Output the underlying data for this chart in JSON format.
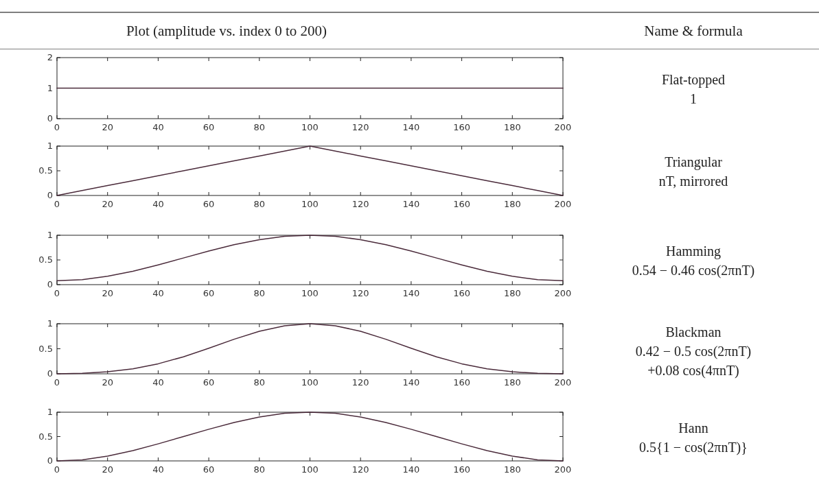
{
  "chart_data": [
    {
      "type": "line",
      "title": "Plot (amplitude vs. index 0 to 200)",
      "annotations": [
        "Name & formula",
        "Flat-topped",
        "1"
      ],
      "x": [
        0,
        10,
        20,
        30,
        40,
        50,
        60,
        70,
        80,
        90,
        100,
        110,
        120,
        130,
        140,
        150,
        160,
        170,
        180,
        190,
        200
      ],
      "values": [
        1,
        1,
        1,
        1,
        1,
        1,
        1,
        1,
        1,
        1,
        1,
        1,
        1,
        1,
        1,
        1,
        1,
        1,
        1,
        1,
        1
      ],
      "color": "#4a2a3a",
      "xlim": [
        0,
        200
      ],
      "xticks": [
        0,
        20,
        40,
        60,
        80,
        100,
        120,
        140,
        160,
        180,
        200
      ],
      "ylim": [
        0,
        2
      ],
      "yticks": [
        0,
        1,
        2
      ]
    },
    {
      "type": "line",
      "annotations": [
        "Triangular",
        "nT, mirrored"
      ],
      "x": [
        0,
        10,
        20,
        30,
        40,
        50,
        60,
        70,
        80,
        90,
        100,
        110,
        120,
        130,
        140,
        150,
        160,
        170,
        180,
        190,
        200
      ],
      "values": [
        0,
        0.1,
        0.2,
        0.3,
        0.4,
        0.5,
        0.6,
        0.7,
        0.8,
        0.9,
        1,
        0.9,
        0.8,
        0.7,
        0.6,
        0.5,
        0.4,
        0.3,
        0.2,
        0.1,
        0
      ],
      "color": "#4a2a3a",
      "xlim": [
        0,
        200
      ],
      "xticks": [
        0,
        20,
        40,
        60,
        80,
        100,
        120,
        140,
        160,
        180,
        200
      ],
      "ylim": [
        0,
        1
      ],
      "yticks": [
        0,
        0.5,
        1
      ]
    },
    {
      "type": "line",
      "annotations": [
        "Hamming",
        "0.54 − 0.46 cos(2πnT)"
      ],
      "x": [
        0,
        10,
        20,
        30,
        40,
        50,
        60,
        70,
        80,
        90,
        100,
        110,
        120,
        130,
        140,
        150,
        160,
        170,
        180,
        190,
        200
      ],
      "values": [
        0.08,
        0.1,
        0.17,
        0.27,
        0.4,
        0.54,
        0.68,
        0.81,
        0.91,
        0.98,
        1,
        0.98,
        0.91,
        0.81,
        0.68,
        0.54,
        0.4,
        0.27,
        0.17,
        0.1,
        0.08
      ],
      "color": "#4a2a3a",
      "xlim": [
        0,
        200
      ],
      "xticks": [
        0,
        20,
        40,
        60,
        80,
        100,
        120,
        140,
        160,
        180,
        200
      ],
      "ylim": [
        0,
        1
      ],
      "yticks": [
        0,
        0.5,
        1
      ]
    },
    {
      "type": "line",
      "annotations": [
        "Blackman",
        "0.42 − 0.5 cos(2πnT)",
        "+0.08 cos(4πnT)"
      ],
      "x": [
        0,
        10,
        20,
        30,
        40,
        50,
        60,
        70,
        80,
        90,
        100,
        110,
        120,
        130,
        140,
        150,
        160,
        170,
        180,
        190,
        200
      ],
      "values": [
        0,
        0.01,
        0.04,
        0.1,
        0.2,
        0.34,
        0.51,
        0.69,
        0.85,
        0.96,
        1,
        0.96,
        0.85,
        0.69,
        0.51,
        0.34,
        0.2,
        0.1,
        0.04,
        0.01,
        0
      ],
      "color": "#4a2a3a",
      "xlim": [
        0,
        200
      ],
      "xticks": [
        0,
        20,
        40,
        60,
        80,
        100,
        120,
        140,
        160,
        180,
        200
      ],
      "ylim": [
        0,
        1
      ],
      "yticks": [
        0,
        0.5,
        1
      ]
    },
    {
      "type": "line",
      "annotations": [
        "Hann",
        "0.5{1 − cos(2πnT)}"
      ],
      "x": [
        0,
        10,
        20,
        30,
        40,
        50,
        60,
        70,
        80,
        90,
        100,
        110,
        120,
        130,
        140,
        150,
        160,
        170,
        180,
        190,
        200
      ],
      "values": [
        0,
        0.02,
        0.1,
        0.21,
        0.35,
        0.5,
        0.65,
        0.79,
        0.9,
        0.98,
        1,
        0.98,
        0.9,
        0.79,
        0.65,
        0.5,
        0.35,
        0.21,
        0.1,
        0.02,
        0
      ],
      "color": "#4a2a3a",
      "xlim": [
        0,
        200
      ],
      "xticks": [
        0,
        20,
        40,
        60,
        80,
        100,
        120,
        140,
        160,
        180,
        200
      ],
      "ylim": [
        0,
        1
      ],
      "yticks": [
        0,
        0.5,
        1
      ]
    }
  ]
}
